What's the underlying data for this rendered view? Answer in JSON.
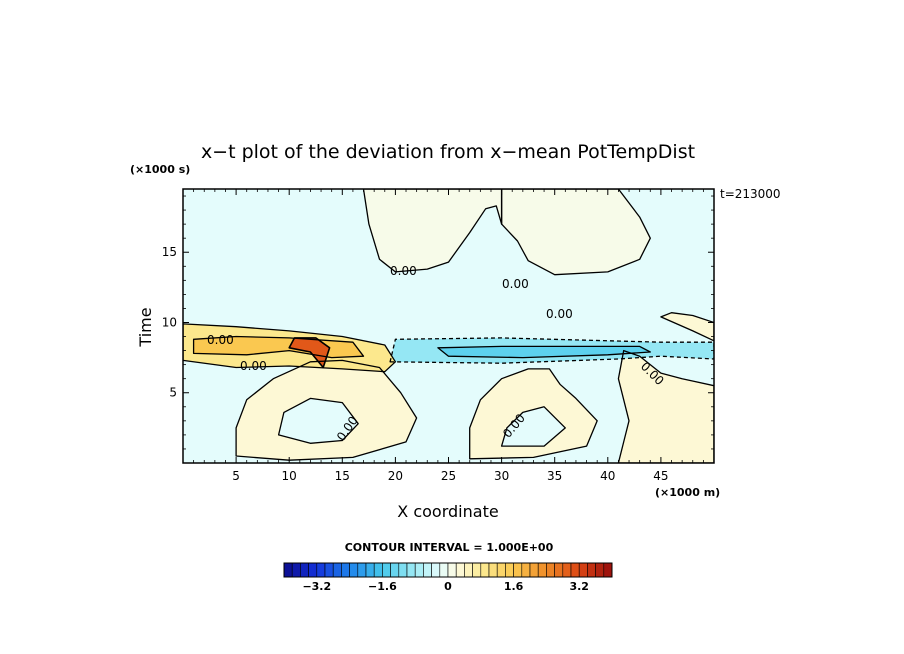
{
  "chart_data": {
    "type": "heatmap",
    "title": "x−t plot of the deviation from x−mean PotTempDist",
    "xlabel": "X coordinate",
    "ylabel": "Time",
    "x_unit": "(×1000 m)",
    "y_unit": "(×1000 s)",
    "time_stamp": "t=213000",
    "xlim": [
      0,
      50
    ],
    "ylim": [
      0,
      19.5
    ],
    "x_ticks": [
      5,
      10,
      15,
      20,
      25,
      30,
      35,
      40,
      45
    ],
    "x_tick_labels": [
      "5",
      "10",
      "15",
      "20",
      "25",
      "30",
      "35",
      "40",
      "45"
    ],
    "y_ticks": [
      5,
      10,
      15
    ],
    "y_tick_labels": [
      "5",
      "10",
      "15"
    ],
    "contour_interval_text": "CONTOUR INTERVAL = 1.000E+00",
    "contour_labels": [
      "0.00",
      "0.00",
      "0.00",
      "0.00",
      "0.00",
      "0.00",
      "0.00",
      "0.00"
    ],
    "colorbar": {
      "min": -4.0,
      "max": 4.0,
      "step": 0.2,
      "tick_values": [
        -3.2,
        -1.6,
        0,
        1.6,
        3.2
      ],
      "tick_labels": [
        "−3.2",
        "−1.6",
        "0",
        "1.6",
        "3.2"
      ]
    },
    "regions": [
      {
        "name": "background",
        "value": -0.2,
        "polygon": [
          [
            0,
            0
          ],
          [
            50,
            0
          ],
          [
            50,
            19.5
          ],
          [
            0,
            19.5
          ]
        ]
      },
      {
        "name": "lower-warm-loop",
        "value": 0.3,
        "polygon": [
          [
            5,
            0.5
          ],
          [
            10,
            0.2
          ],
          [
            16,
            0.4
          ],
          [
            21,
            1.5
          ],
          [
            22,
            3.2
          ],
          [
            20.5,
            5
          ],
          [
            18.5,
            6.8
          ],
          [
            15,
            7.3
          ],
          [
            12,
            7.2
          ],
          [
            8.5,
            6
          ],
          [
            6,
            4.5
          ],
          [
            5,
            2.5
          ]
        ]
      },
      {
        "name": "lower-warm-loop-core",
        "value": -0.2,
        "polygon": [
          [
            9,
            2
          ],
          [
            12,
            1.4
          ],
          [
            15,
            1.6
          ],
          [
            16.5,
            2.8
          ],
          [
            15,
            4.3
          ],
          [
            12,
            4.6
          ],
          [
            9.5,
            3.6
          ]
        ]
      },
      {
        "name": "middle-warm-arc",
        "value": 0.3,
        "polygon": [
          [
            27,
            0.3
          ],
          [
            33,
            0.4
          ],
          [
            38,
            1.2
          ],
          [
            39,
            3
          ],
          [
            37,
            4.6
          ],
          [
            35.5,
            5.6
          ],
          [
            34.5,
            6.7
          ],
          [
            32.5,
            6.7
          ],
          [
            30,
            6
          ],
          [
            28,
            4.5
          ],
          [
            27,
            2.5
          ]
        ]
      },
      {
        "name": "middle-warm-arc-core",
        "value": -0.2,
        "polygon": [
          [
            30,
            1.2
          ],
          [
            34,
            1.2
          ],
          [
            36,
            2.5
          ],
          [
            34,
            4
          ],
          [
            32,
            3.6
          ],
          [
            30.5,
            2.5
          ]
        ]
      },
      {
        "name": "right-warm-region",
        "value": 0.3,
        "polygon": [
          [
            41,
            0
          ],
          [
            50,
            0
          ],
          [
            50,
            5.5
          ],
          [
            47,
            6
          ],
          [
            45,
            6.4
          ],
          [
            43,
            7.6
          ],
          [
            41.5,
            8
          ],
          [
            41,
            6
          ],
          [
            42,
            3
          ],
          [
            41.5,
            1.5
          ]
        ]
      },
      {
        "name": "cold-band",
        "value": -0.9,
        "polygon": [
          [
            19.5,
            7.2
          ],
          [
            30,
            7.1
          ],
          [
            41,
            7.4
          ],
          [
            45,
            7.6
          ],
          [
            50,
            7.4
          ],
          [
            50,
            8.6
          ],
          [
            45,
            8.6
          ],
          [
            30,
            8.9
          ],
          [
            20,
            8.8
          ]
        ]
      },
      {
        "name": "cold-band-core",
        "value": -1.4,
        "polygon": [
          [
            25,
            7.6
          ],
          [
            32,
            7.5
          ],
          [
            40,
            7.7
          ],
          [
            44,
            7.9
          ],
          [
            43,
            8.3
          ],
          [
            30,
            8.3
          ],
          [
            24,
            8.2
          ]
        ]
      },
      {
        "name": "warm-band",
        "value": 0.9,
        "polygon": [
          [
            0,
            7.3
          ],
          [
            5,
            6.8
          ],
          [
            10,
            6.9
          ],
          [
            15,
            6.7
          ],
          [
            19,
            6.5
          ],
          [
            20,
            7.2
          ],
          [
            19,
            8.4
          ],
          [
            15,
            9
          ],
          [
            10,
            9.4
          ],
          [
            5,
            9.7
          ],
          [
            0,
            9.9
          ]
        ]
      },
      {
        "name": "warm-band-core",
        "value": 1.6,
        "polygon": [
          [
            1,
            7.8
          ],
          [
            6,
            7.7
          ],
          [
            10,
            8
          ],
          [
            14,
            7.5
          ],
          [
            17,
            7.6
          ],
          [
            16,
            8.6
          ],
          [
            10,
            8.9
          ],
          [
            5,
            9
          ],
          [
            1,
            8.8
          ]
        ]
      },
      {
        "name": "hot-core",
        "value": 3.0,
        "polygon": [
          [
            10,
            8.2
          ],
          [
            12,
            7.9
          ],
          [
            13.2,
            6.8
          ],
          [
            13.8,
            8.2
          ],
          [
            12.5,
            8.9
          ],
          [
            10.5,
            8.9
          ]
        ]
      },
      {
        "name": "upper-warm-region-left",
        "value": 0.1,
        "polygon": [
          [
            17,
            19.5
          ],
          [
            17.5,
            17
          ],
          [
            18.5,
            14.5
          ],
          [
            20,
            13.6
          ],
          [
            23,
            13.8
          ],
          [
            25,
            14.3
          ],
          [
            27,
            16.4
          ],
          [
            28.5,
            18.1
          ],
          [
            29.5,
            18.3
          ],
          [
            30,
            17
          ],
          [
            30,
            19.5
          ]
        ]
      },
      {
        "name": "upper-warm-region-right",
        "value": 0.1,
        "polygon": [
          [
            30,
            19.5
          ],
          [
            30,
            17
          ],
          [
            31.5,
            15.8
          ],
          [
            32.5,
            14.4
          ],
          [
            35,
            13.4
          ],
          [
            40,
            13.6
          ],
          [
            43,
            14.5
          ],
          [
            44,
            16
          ],
          [
            43,
            17.5
          ],
          [
            41,
            19.5
          ]
        ]
      },
      {
        "name": "right-edge-warm",
        "value": 0.3,
        "polygon": [
          [
            45,
            10.4
          ],
          [
            48,
            9.4
          ],
          [
            50,
            8.7
          ],
          [
            50,
            10
          ],
          [
            48,
            10.5
          ],
          [
            46,
            10.7
          ]
        ]
      }
    ]
  }
}
